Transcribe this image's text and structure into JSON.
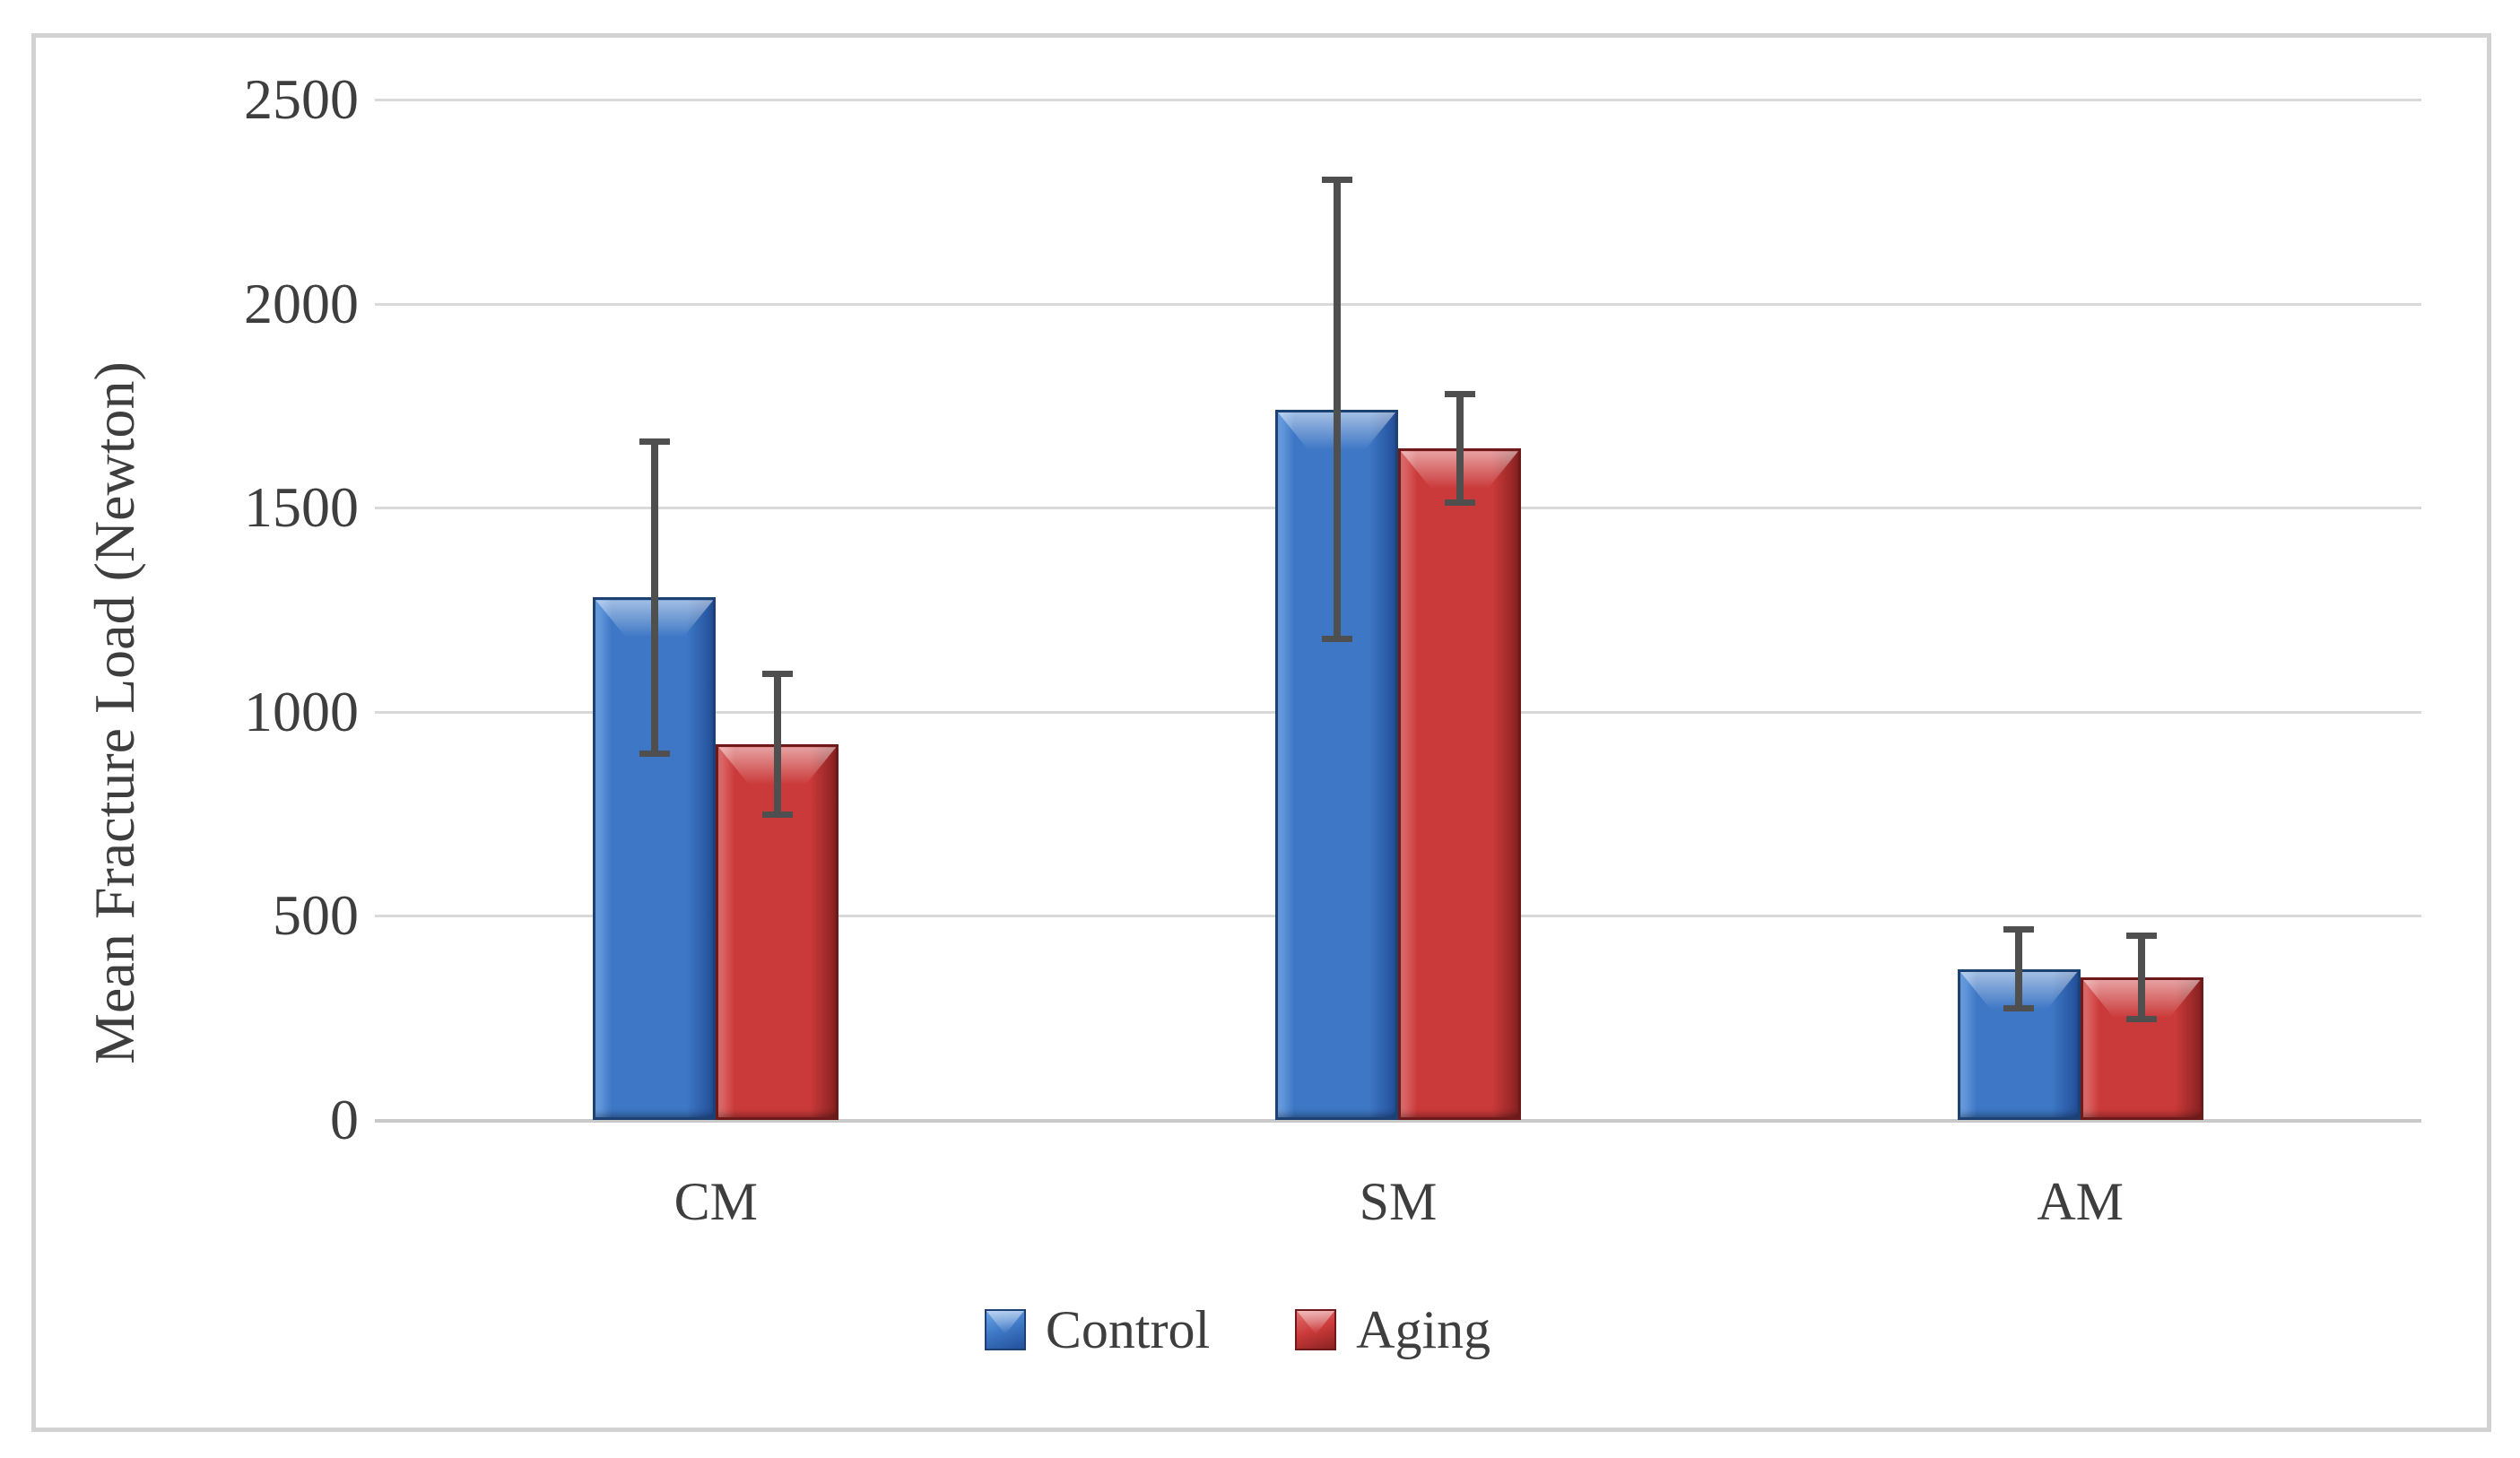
{
  "chart_data": {
    "type": "bar",
    "title": "",
    "categories": [
      "CM",
      "SM",
      "AM"
    ],
    "series": [
      {
        "name": "Control",
        "values": [
          1280,
          1740,
          370
        ],
        "error_plus": [
          390,
          570,
          105
        ],
        "error_minus": [
          390,
          570,
          105
        ],
        "color_base": "#3D77C5",
        "color_light": "#6FA3E4",
        "color_dark": "#24509A",
        "color_edge": "#1C4173"
      },
      {
        "name": "Aging",
        "values": [
          920,
          1645,
          350
        ],
        "error_plus": [
          180,
          140,
          110
        ],
        "error_minus": [
          180,
          140,
          110
        ],
        "color_base": "#CB3A3A",
        "color_light": "#E07272",
        "color_dark": "#8A2222",
        "color_edge": "#6E1A1A"
      }
    ],
    "xlabel": "",
    "ylabel": "Mean Fracture Load (Newton)",
    "ylim": [
      0,
      2500
    ],
    "ytick_step": 500,
    "yticks": [
      0,
      500,
      1000,
      1500,
      2000,
      2500
    ],
    "grid": true,
    "legend_position": "bottom",
    "colors": {
      "gridline": "#D9D9D9",
      "axis_line": "#C9C9C9",
      "error_bar": "#4F4F4F",
      "text": "#3E3E3E",
      "frame_border": "#D2D2D2",
      "background": "#FFFFFF"
    }
  }
}
